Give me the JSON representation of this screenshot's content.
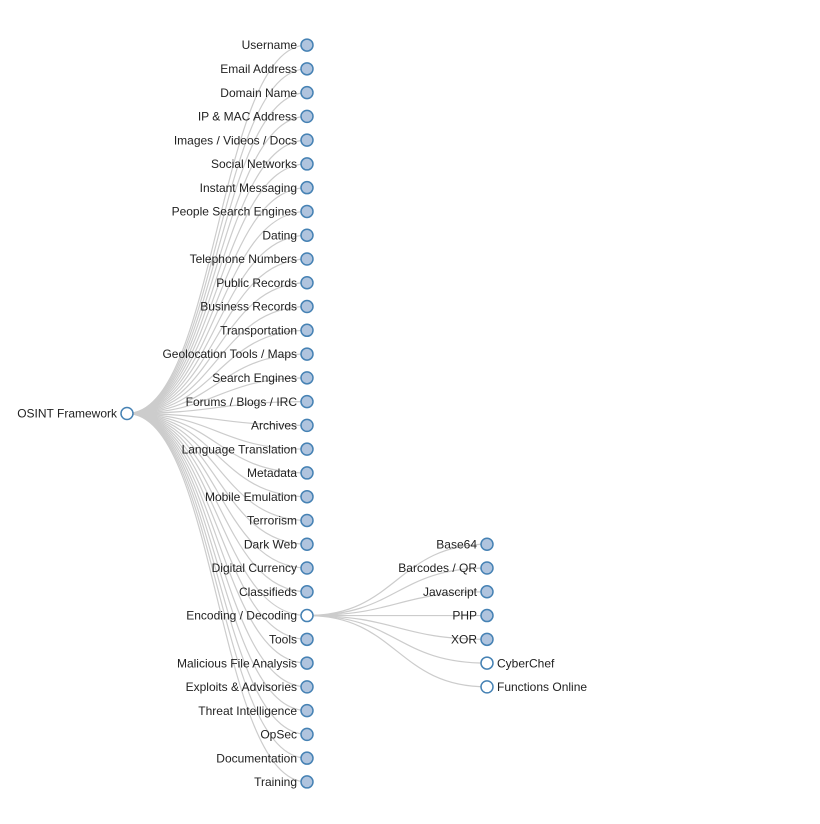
{
  "tree": {
    "label": "OSINT Framework",
    "children": [
      {
        "label": "Username",
        "collapsed": true
      },
      {
        "label": "Email Address",
        "collapsed": true
      },
      {
        "label": "Domain Name",
        "collapsed": true
      },
      {
        "label": "IP & MAC Address",
        "collapsed": true
      },
      {
        "label": "Images / Videos / Docs",
        "collapsed": true
      },
      {
        "label": "Social Networks",
        "collapsed": true
      },
      {
        "label": "Instant Messaging",
        "collapsed": true
      },
      {
        "label": "People Search Engines",
        "collapsed": true
      },
      {
        "label": "Dating",
        "collapsed": true
      },
      {
        "label": "Telephone Numbers",
        "collapsed": true
      },
      {
        "label": "Public Records",
        "collapsed": true
      },
      {
        "label": "Business Records",
        "collapsed": true
      },
      {
        "label": "Transportation",
        "collapsed": true
      },
      {
        "label": "Geolocation Tools / Maps",
        "collapsed": true
      },
      {
        "label": "Search Engines",
        "collapsed": true
      },
      {
        "label": "Forums / Blogs / IRC",
        "collapsed": true
      },
      {
        "label": "Archives",
        "collapsed": true
      },
      {
        "label": "Language Translation",
        "collapsed": true
      },
      {
        "label": "Metadata",
        "collapsed": true
      },
      {
        "label": "Mobile Emulation",
        "collapsed": true
      },
      {
        "label": "Terrorism",
        "collapsed": true
      },
      {
        "label": "Dark Web",
        "collapsed": true
      },
      {
        "label": "Digital Currency",
        "collapsed": true
      },
      {
        "label": "Classifieds",
        "collapsed": true
      },
      {
        "label": "Encoding / Decoding",
        "children": [
          {
            "label": "Base64",
            "collapsed": true
          },
          {
            "label": "Barcodes / QR",
            "collapsed": true
          },
          {
            "label": "Javascript",
            "collapsed": true
          },
          {
            "label": "PHP",
            "collapsed": true
          },
          {
            "label": "XOR",
            "collapsed": true
          },
          {
            "label": "CyberChef"
          },
          {
            "label": "Functions Online"
          }
        ]
      },
      {
        "label": "Tools",
        "collapsed": true
      },
      {
        "label": "Malicious File Analysis",
        "collapsed": true
      },
      {
        "label": "Exploits & Advisories",
        "collapsed": true
      },
      {
        "label": "Threat Intelligence",
        "collapsed": true
      },
      {
        "label": "OpSec",
        "collapsed": true
      },
      {
        "label": "Documentation",
        "collapsed": true
      },
      {
        "label": "Training",
        "collapsed": true
      }
    ]
  }
}
